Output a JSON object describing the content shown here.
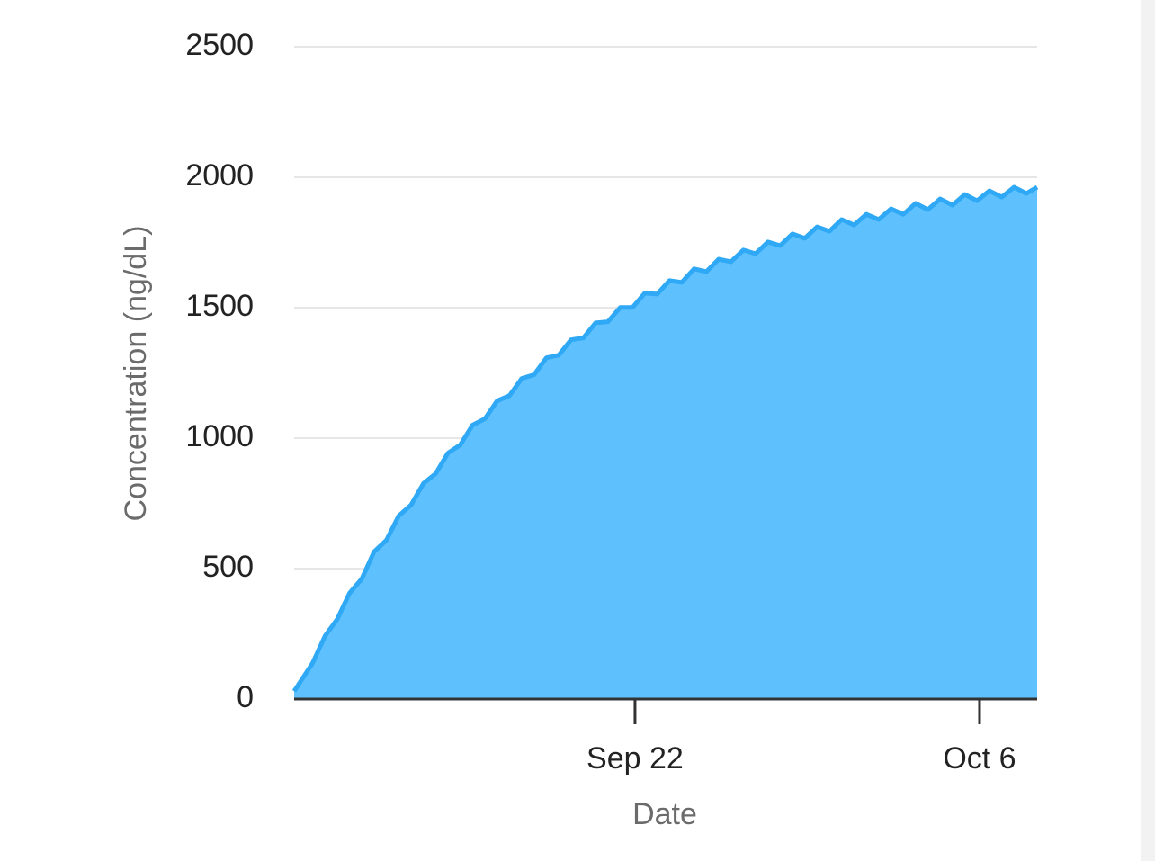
{
  "chart_data": {
    "type": "area",
    "x_label": "Date",
    "y_label": "Concentration (ng/dL)",
    "x": [
      0.15,
      0.9,
      1.4,
      1.9,
      2.4,
      2.9,
      3.4,
      3.9,
      4.4,
      4.9,
      5.4,
      5.9,
      6.4,
      6.9,
      7.4,
      7.9,
      8.4,
      8.9,
      9.4,
      9.9,
      10.4,
      10.9,
      11.4,
      11.9,
      12.4,
      12.9,
      13.4,
      13.9,
      14.4,
      14.9,
      15.4,
      15.9,
      16.4,
      16.9,
      17.4,
      17.9,
      18.4,
      18.9,
      19.4,
      19.9,
      20.4,
      20.9,
      21.4,
      21.9,
      22.4,
      22.9,
      23.4,
      23.9,
      24.4,
      24.9,
      25.4,
      25.9,
      26.4,
      26.9,
      27.4,
      27.9,
      28.4,
      28.9,
      29.4,
      29.9,
      30.34
    ],
    "series": [
      {
        "color": "#2fa8f5",
        "fill": "#5ec1fd",
        "values": [
          30,
          138,
          241,
          306,
          406,
          461,
          565,
          609,
          702,
          744,
          826,
          864,
          943,
          974,
          1050,
          1074,
          1143,
          1163,
          1229,
          1243,
          1308,
          1318,
          1377,
          1384,
          1442,
          1446,
          1501,
          1501,
          1556,
          1552,
          1604,
          1597,
          1649,
          1638,
          1686,
          1676,
          1721,
          1707,
          1752,
          1738,
          1783,
          1766,
          1810,
          1793,
          1838,
          1817,
          1858,
          1838,
          1879,
          1858,
          1900,
          1876,
          1917,
          1893,
          1934,
          1910,
          1948,
          1924,
          1962,
          1938,
          1962
        ]
      }
    ],
    "xlim": [
      0.15,
      30.34
    ],
    "xticks": [
      {
        "value": 14,
        "label": "Sep 22"
      },
      {
        "value": 28,
        "label": "Oct 6"
      }
    ],
    "ylim": [
      0,
      2500
    ],
    "yticks": [
      0,
      500,
      1000,
      1500,
      2000,
      2500
    ],
    "grid": true
  }
}
